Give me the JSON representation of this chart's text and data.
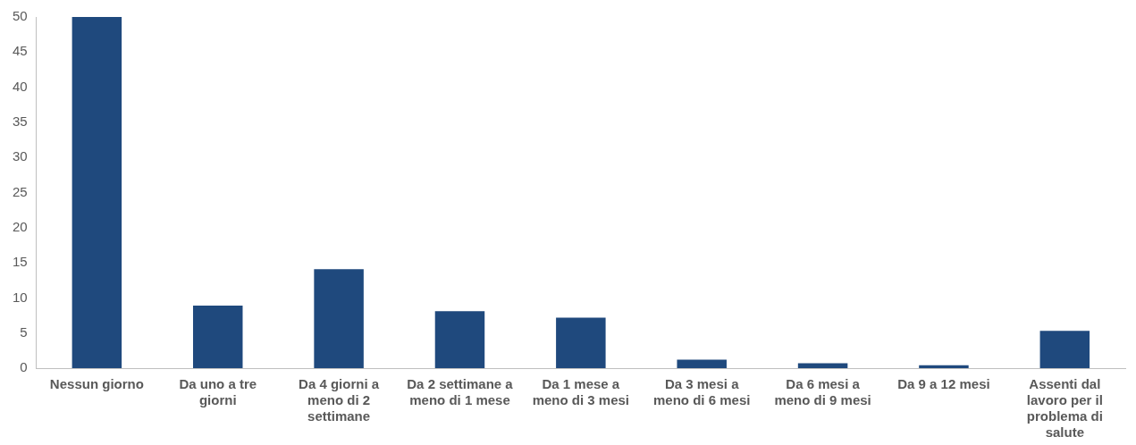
{
  "chart_data": {
    "type": "bar",
    "categories": [
      "Nessun giorno",
      "Da uno a tre giorni",
      "Da 4 giorni a meno di 2 settimane",
      "Da 2 settimane a meno di 1 mese",
      "Da 1 mese a meno di 3 mesi",
      "Da 3 mesi a meno di 6 mesi",
      "Da 6 mesi a meno di 9 mesi",
      "Da 9 a 12 mesi",
      "Assenti dal lavoro per il problema di salute"
    ],
    "values": [
      50,
      8.9,
      14.1,
      8.1,
      7.2,
      1.2,
      0.7,
      0.4,
      5.3
    ],
    "color": "#1f497d",
    "ylim": [
      0,
      50
    ],
    "yticks": [
      0,
      5,
      10,
      15,
      20,
      25,
      30,
      35,
      40,
      45,
      50
    ],
    "grid": false,
    "legend": false
  }
}
